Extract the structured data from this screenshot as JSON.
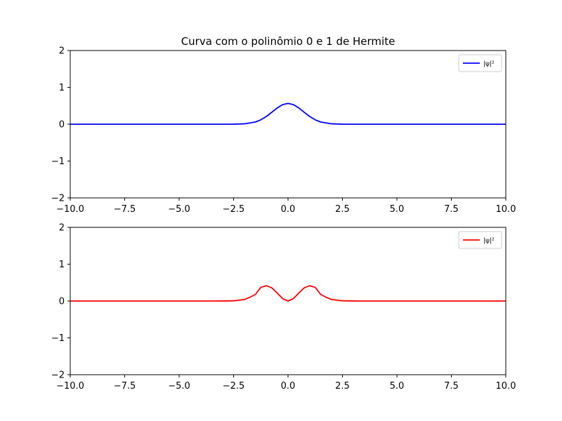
{
  "chart_data": [
    {
      "type": "line",
      "title": "Curva com o polinômio 0 e 1 de Hermite",
      "xlabel": "",
      "ylabel": "",
      "xlim": [
        -10,
        10
      ],
      "ylim": [
        -2,
        2
      ],
      "xticks": [
        -10,
        -7.5,
        -5,
        -2.5,
        0,
        2.5,
        5,
        7.5,
        10
      ],
      "xtick_labels": [
        "−10.0",
        "−7.5",
        "−5.0",
        "−2.5",
        "0.0",
        "2.5",
        "5.0",
        "7.5",
        "10.0"
      ],
      "yticks": [
        -2,
        -1,
        0,
        1,
        2
      ],
      "ytick_labels": [
        "−2",
        "−1",
        "0",
        "1",
        "2"
      ],
      "grid": false,
      "legend_position": "upper right",
      "series": [
        {
          "name": "|ψ|²",
          "color": "#0000ff",
          "x": [
            -10,
            -4,
            -3,
            -2.5,
            -2,
            -1.5,
            -1.25,
            -1,
            -0.75,
            -0.5,
            -0.25,
            0,
            0.25,
            0.5,
            0.75,
            1,
            1.25,
            1.5,
            2,
            2.5,
            3,
            4,
            10
          ],
          "y": [
            0,
            0,
            0.0001,
            0.0011,
            0.0103,
            0.0594,
            0.1184,
            0.2076,
            0.3209,
            0.4393,
            0.5311,
            0.5642,
            0.5311,
            0.4393,
            0.3209,
            0.2076,
            0.1184,
            0.0594,
            0.0103,
            0.0011,
            0.0001,
            0,
            0
          ]
        }
      ]
    },
    {
      "type": "line",
      "title": "",
      "xlabel": "",
      "ylabel": "",
      "xlim": [
        -10,
        10
      ],
      "ylim": [
        -2,
        2
      ],
      "xticks": [
        -10,
        -7.5,
        -5,
        -2.5,
        0,
        2.5,
        5,
        7.5,
        10
      ],
      "xtick_labels": [
        "−10.0",
        "−7.5",
        "−5.0",
        "−2.5",
        "0.0",
        "2.5",
        "5.0",
        "7.5",
        "10.0"
      ],
      "yticks": [
        -2,
        -1,
        0,
        1,
        2
      ],
      "ytick_labels": [
        "−2",
        "−1",
        "0",
        "1",
        "2"
      ],
      "grid": false,
      "legend_position": "upper right",
      "series": [
        {
          "name": "|ψ|²",
          "color": "#ff0000",
          "x": [
            -10,
            -4,
            -3.5,
            -3,
            -2.5,
            -2,
            -1.75,
            -1.5,
            -1.25,
            -1,
            -0.75,
            -0.5,
            -0.25,
            0,
            0.25,
            0.5,
            0.75,
            1,
            1.25,
            1.5,
            1.75,
            2,
            2.5,
            3,
            3.5,
            4,
            10
          ],
          "y": [
            0,
            0,
            0.0001,
            0.001,
            0.0055,
            0.0413,
            0.1025,
            0.1784,
            0.3701,
            0.4151,
            0.3611,
            0.2196,
            0.0664,
            0,
            0.0664,
            0.2196,
            0.3611,
            0.4151,
            0.3701,
            0.1784,
            0.1025,
            0.0413,
            0.0055,
            0.001,
            0.0001,
            0,
            0
          ]
        }
      ]
    }
  ]
}
